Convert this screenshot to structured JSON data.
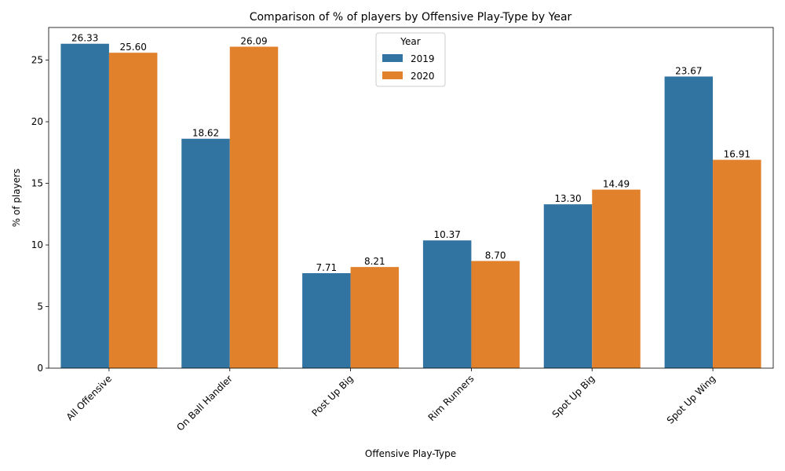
{
  "chart_data": {
    "type": "bar",
    "title": "Comparison of % of players by Offensive Play-Type by Year",
    "xlabel": "Offensive Play-Type",
    "ylabel": "% of players",
    "categories": [
      "All Offensive",
      "On Ball Handler",
      "Post Up Big",
      "Rim Runners",
      "Spot Up Big",
      "Spot Up Wing"
    ],
    "series": [
      {
        "name": "2019",
        "color": "#3274a1",
        "values": [
          26.33,
          18.62,
          7.71,
          10.37,
          13.3,
          23.67
        ]
      },
      {
        "name": "2020",
        "color": "#e1812c",
        "values": [
          25.6,
          26.09,
          8.21,
          8.7,
          14.49,
          16.91
        ]
      }
    ],
    "ylim": [
      0,
      27.65
    ],
    "yticks": [
      0,
      5,
      10,
      15,
      20,
      25
    ],
    "x_tick_rotation_deg": 45,
    "legend": {
      "title": "Year",
      "placement": "upper-center"
    },
    "grid": false,
    "value_decimals": 2
  }
}
